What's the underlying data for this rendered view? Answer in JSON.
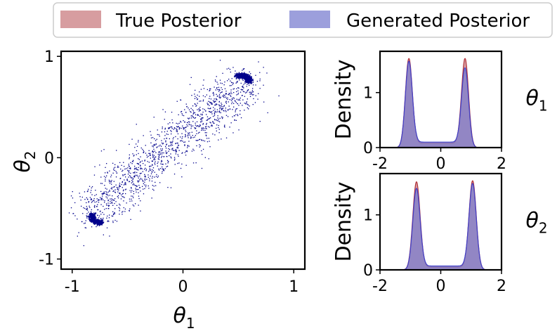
{
  "legend": {
    "entries": [
      {
        "label": "True Posterior",
        "color": "#c97c80",
        "alpha": 0.75
      },
      {
        "label": "Generated Posterior",
        "color": "#7b7fd0",
        "alpha": 0.75
      }
    ]
  },
  "chart_data": [
    {
      "type": "scatter",
      "name": "joint-posterior-samples",
      "xlabel": "θ1",
      "ylabel": "θ2",
      "xlim": [
        -1.1,
        1.1
      ],
      "ylim": [
        -1.1,
        1.05
      ],
      "xticks": [
        -1,
        0,
        1
      ],
      "yticks": [
        -1,
        0,
        1
      ],
      "xtick_labels": [
        "-1",
        "0",
        "1"
      ],
      "ytick_labels": [
        "-1",
        "0",
        "1"
      ],
      "point_color": "#00008b",
      "description_of_structure": {
        "diffuse_band": {
          "from": [
            -0.85,
            -0.55
          ],
          "to": [
            0.55,
            0.75
          ],
          "spread": 0.18,
          "n": 1400
        },
        "cluster_top": {
          "center": [
            0.52,
            0.79
          ],
          "arc_radius": 0.08,
          "n": 700
        },
        "cluster_bottom": {
          "center": [
            -0.78,
            -0.58
          ],
          "arc_radius": 0.06,
          "n": 600
        }
      }
    },
    {
      "type": "area",
      "name": "theta1-marginal",
      "side_label": "θ1",
      "ylabel": "Density",
      "xlim": [
        -2,
        2
      ],
      "ylim": [
        0,
        1.75
      ],
      "xticks": [
        -2,
        0,
        2
      ],
      "yticks": [
        0,
        1
      ],
      "series": [
        {
          "name": "True Posterior",
          "peaks": [
            {
              "mu": -1.05,
              "sigma": 0.115,
              "height": 1.62
            },
            {
              "mu": 0.8,
              "sigma": 0.115,
              "height": 1.62
            }
          ],
          "floor": 0.08
        },
        {
          "name": "Generated Posterior",
          "peaks": [
            {
              "mu": -1.05,
              "sigma": 0.115,
              "height": 1.57
            },
            {
              "mu": 0.8,
              "sigma": 0.115,
              "height": 1.45
            }
          ],
          "floor": 0.1
        }
      ]
    },
    {
      "type": "area",
      "name": "theta2-marginal",
      "side_label": "θ2",
      "ylabel": "Density",
      "xlim": [
        -2,
        2
      ],
      "ylim": [
        0,
        1.75
      ],
      "xticks": [
        -2,
        0,
        2
      ],
      "yticks": [
        0,
        1
      ],
      "series": [
        {
          "name": "True Posterior",
          "peaks": [
            {
              "mu": -0.8,
              "sigma": 0.12,
              "height": 1.6
            },
            {
              "mu": 1.05,
              "sigma": 0.12,
              "height": 1.62
            }
          ],
          "floor": 0.05
        },
        {
          "name": "Generated Posterior",
          "peaks": [
            {
              "mu": -0.8,
              "sigma": 0.12,
              "height": 1.48
            },
            {
              "mu": 1.05,
              "sigma": 0.12,
              "height": 1.57
            }
          ],
          "floor": 0.07
        }
      ]
    }
  ]
}
